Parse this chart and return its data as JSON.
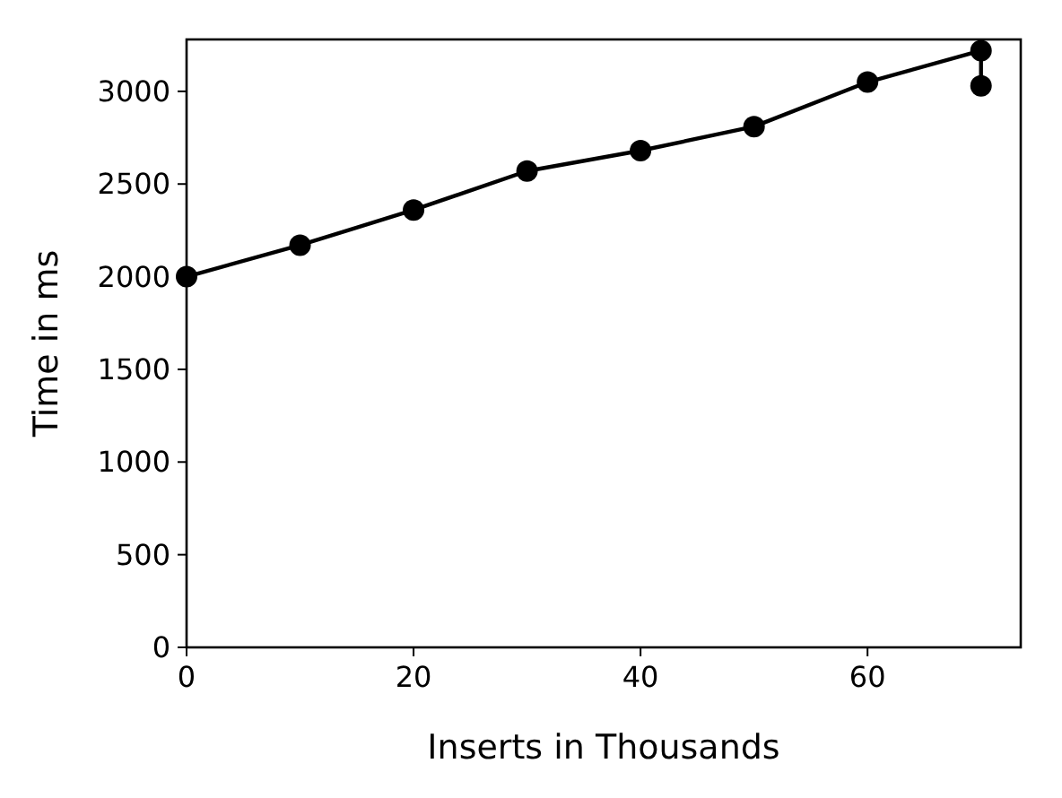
{
  "chart_data": {
    "type": "line",
    "xlabel": "Inserts in Thousands",
    "ylabel": "Time in ms",
    "x": [
      0,
      10,
      20,
      30,
      40,
      50,
      60,
      70,
      70
    ],
    "series": [
      {
        "color": "#000000",
        "values": [
          2000,
          2170,
          2360,
          2570,
          2680,
          2810,
          3050,
          3220,
          3030
        ]
      }
    ],
    "xlim": [
      0,
      73.5
    ],
    "xticks": [
      0,
      20,
      40,
      60
    ],
    "ylim": [
      0,
      3280
    ],
    "yticks": [
      0,
      500,
      1000,
      1500,
      2000,
      2500,
      3000
    ],
    "marker": "circle",
    "line_style": "solid",
    "grid": false
  }
}
